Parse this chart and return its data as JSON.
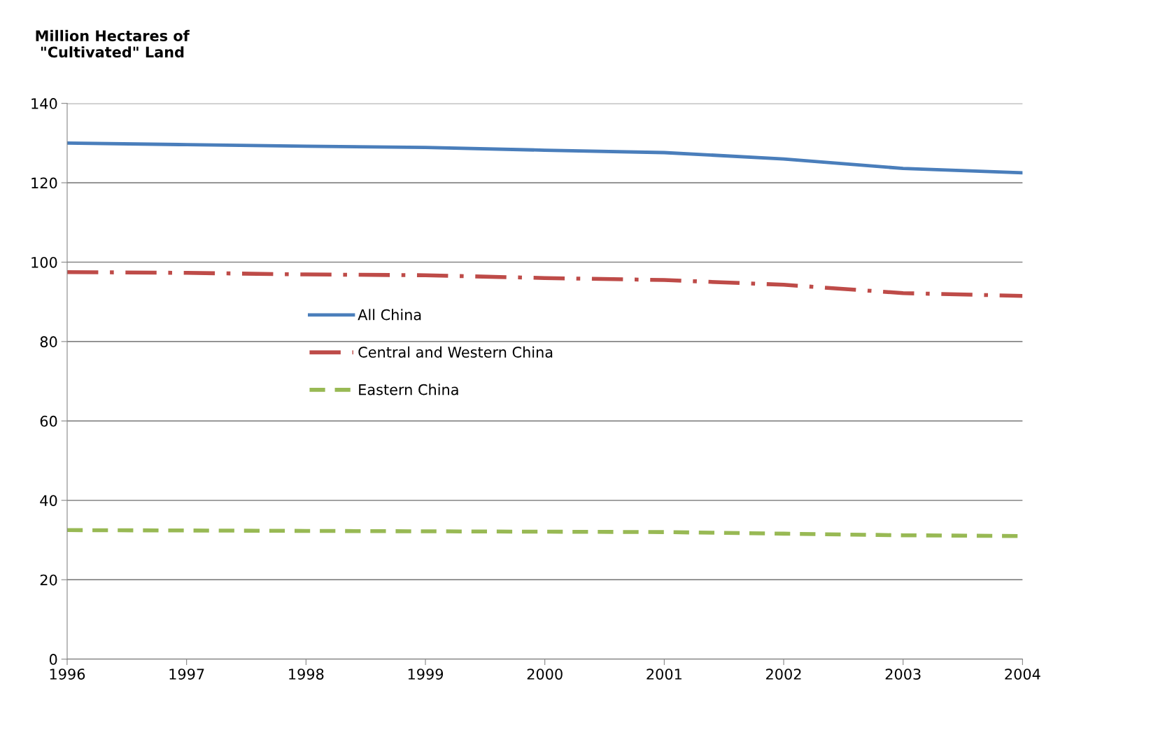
{
  "chart_data": {
    "type": "line",
    "ylabel": "Million Hectares of\n \"Cultivated\" Land",
    "x": [
      1996,
      1997,
      1998,
      1999,
      2000,
      2001,
      2002,
      2003,
      2004
    ],
    "series": [
      {
        "name": "All China",
        "color": "#4a7ebb",
        "line_style": "solid",
        "values": [
          130.0,
          129.6,
          129.2,
          128.9,
          128.2,
          127.6,
          126.0,
          123.6,
          122.5
        ]
      },
      {
        "name": "Central and Western China",
        "color": "#be4b48",
        "line_style": "dashdot",
        "values": [
          97.5,
          97.3,
          96.9,
          96.7,
          96.0,
          95.5,
          94.3,
          92.2,
          91.5
        ]
      },
      {
        "name": "Eastern China",
        "color": "#98b954",
        "line_style": "dashed",
        "values": [
          32.5,
          32.4,
          32.3,
          32.2,
          32.1,
          32.0,
          31.6,
          31.2,
          31.0
        ]
      }
    ],
    "xlim": [
      1996,
      2004
    ],
    "xticks": [
      1996,
      1997,
      1998,
      1999,
      2000,
      2001,
      2002,
      2003,
      2004
    ],
    "ylim": [
      0,
      140
    ],
    "yticks": [
      0,
      20,
      40,
      60,
      80,
      100,
      120,
      140
    ],
    "grid": "y",
    "legend": "center left"
  }
}
